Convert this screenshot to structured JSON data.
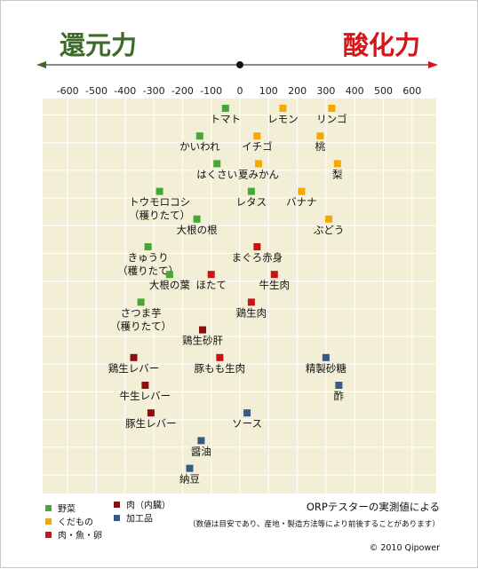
{
  "header": {
    "left_title": "還元力",
    "right_title": "酸化力",
    "left_color": "#3f6b2a",
    "right_color": "#d6151b",
    "arrow_color": "#444444"
  },
  "colors": {
    "plot_bg": "#f3efd6",
    "grid": "#ffffff",
    "cat_vegetable": "#45a836",
    "cat_fruit": "#f6a800",
    "cat_meat": "#c81414",
    "cat_organ": "#8c1010",
    "cat_processed": "#3a5a86"
  },
  "chart_data": {
    "type": "scatter",
    "x_ticks": [
      -600,
      -500,
      -400,
      -300,
      -200,
      -100,
      0,
      100,
      200,
      300,
      400,
      500,
      600
    ],
    "xlim": [
      -650,
      650
    ],
    "grid": true,
    "legend_position": "bottom-left",
    "categories": [
      {
        "key": "vegetable",
        "label": "野菜"
      },
      {
        "key": "fruit",
        "label": "くだもの"
      },
      {
        "key": "meat",
        "label": "肉・魚・卵"
      },
      {
        "key": "organ",
        "label": "肉（内臓）"
      },
      {
        "key": "processed",
        "label": "加工品"
      }
    ],
    "points": [
      {
        "label": "トマト",
        "x": -50,
        "category": "vegetable",
        "row": 0
      },
      {
        "label": "レモン",
        "x": 150,
        "category": "fruit",
        "row": 0
      },
      {
        "label": "リンゴ",
        "x": 320,
        "category": "fruit",
        "row": 0
      },
      {
        "label": "かいわれ",
        "x": -140,
        "category": "vegetable",
        "row": 1
      },
      {
        "label": "イチゴ",
        "x": 60,
        "category": "fruit",
        "row": 1
      },
      {
        "label": "桃",
        "x": 280,
        "category": "fruit",
        "row": 1
      },
      {
        "label": "はくさい",
        "x": -80,
        "category": "vegetable",
        "row": 2
      },
      {
        "label": "夏みかん",
        "x": 65,
        "category": "fruit",
        "row": 2
      },
      {
        "label": "梨",
        "x": 340,
        "category": "fruit",
        "row": 2
      },
      {
        "label": "トウモロコシ\n（穫りたて）",
        "x": -280,
        "category": "vegetable",
        "row": 3
      },
      {
        "label": "レタス",
        "x": 40,
        "category": "vegetable",
        "row": 3
      },
      {
        "label": "バナナ",
        "x": 215,
        "category": "fruit",
        "row": 3
      },
      {
        "label": "大根の根",
        "x": -150,
        "category": "vegetable",
        "row": 4
      },
      {
        "label": "ぶどう",
        "x": 310,
        "category": "fruit",
        "row": 4
      },
      {
        "label": "きゅうり\n（穫りたて）",
        "x": -320,
        "category": "vegetable",
        "row": 5
      },
      {
        "label": "まぐろ赤身",
        "x": 60,
        "category": "meat",
        "row": 5
      },
      {
        "label": "大根の葉",
        "x": -245,
        "category": "vegetable",
        "row": 6
      },
      {
        "label": "ほたて",
        "x": -100,
        "category": "meat",
        "row": 6
      },
      {
        "label": "牛生肉",
        "x": 120,
        "category": "meat",
        "row": 6
      },
      {
        "label": "さつま芋\n（穫りたて）",
        "x": -345,
        "category": "vegetable",
        "row": 7
      },
      {
        "label": "鶏生肉",
        "x": 40,
        "category": "meat",
        "row": 7
      },
      {
        "label": "鶏生砂肝",
        "x": -130,
        "category": "organ",
        "row": 8
      },
      {
        "label": "鶏生レバー",
        "x": -370,
        "category": "organ",
        "row": 9
      },
      {
        "label": "豚もも生肉",
        "x": -70,
        "category": "meat",
        "row": 9
      },
      {
        "label": "精製砂糖",
        "x": 300,
        "category": "processed",
        "row": 9
      },
      {
        "label": "牛生レバー",
        "x": -330,
        "category": "organ",
        "row": 10
      },
      {
        "label": "酢",
        "x": 345,
        "category": "processed",
        "row": 10
      },
      {
        "label": "豚生レバー",
        "x": -310,
        "category": "organ",
        "row": 11
      },
      {
        "label": "ソース",
        "x": 25,
        "category": "processed",
        "row": 11
      },
      {
        "label": "醤油",
        "x": -135,
        "category": "processed",
        "row": 12
      },
      {
        "label": "納豆",
        "x": -175,
        "category": "processed",
        "row": 13
      }
    ]
  },
  "notes": {
    "title": "ORPテスターの実測値による",
    "sub": "（数値は目安であり、産地・製造方法等により前後することがあります）",
    "copyright": "© 2010 Qipower"
  }
}
